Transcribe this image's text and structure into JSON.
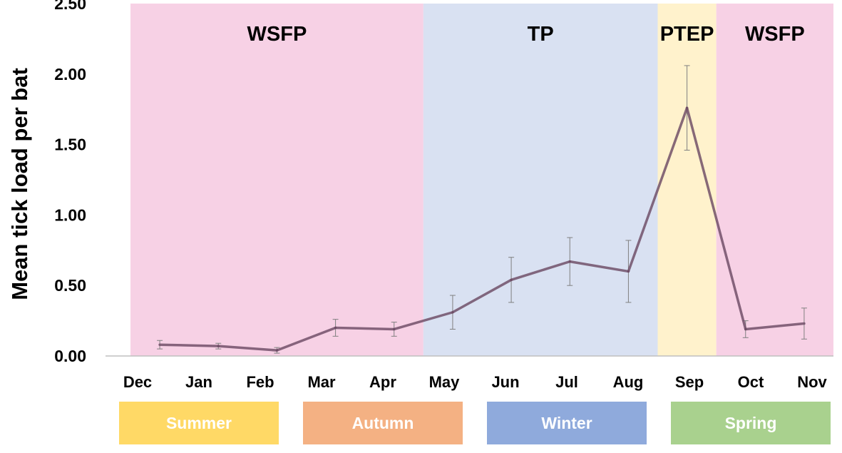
{
  "chart_data": {
    "type": "line",
    "ylabel": "Mean tick load per bat",
    "xlabel": "",
    "ylim": [
      0,
      2.5
    ],
    "yticks": [
      "0.00",
      "0.50",
      "1.00",
      "1.50",
      "2.00",
      "2.50"
    ],
    "categories": [
      "Dec",
      "Jan",
      "Feb",
      "Mar",
      "Apr",
      "May",
      "Jun",
      "Jul",
      "Aug",
      "Sep",
      "Oct",
      "Nov"
    ],
    "series": [
      {
        "values": [
          0.08,
          0.07,
          0.04,
          0.2,
          0.19,
          0.31,
          0.54,
          0.67,
          0.6,
          1.76,
          0.19,
          0.23
        ],
        "error": [
          0.03,
          0.02,
          0.02,
          0.06,
          0.05,
          0.12,
          0.16,
          0.17,
          0.22,
          0.3,
          0.06,
          0.11
        ]
      }
    ],
    "periods": [
      {
        "label": "WSFP",
        "from": "Dec",
        "to": "Apr",
        "color": "#f7d1e5"
      },
      {
        "label": "TP",
        "from": "May",
        "to": "Aug",
        "color": "#d9e1f2"
      },
      {
        "label": "PTEP",
        "from": "Sep",
        "to": "Sep",
        "color": "#fff2cc"
      },
      {
        "label": "WSFP",
        "from": "Oct",
        "to": "Nov",
        "color": "#f7d1e5"
      }
    ],
    "seasons": [
      {
        "label": "Summer",
        "from": "Dec",
        "to": "Feb",
        "color": "#ffd966"
      },
      {
        "label": "Autumn",
        "from": "Mar",
        "to": "May",
        "color": "#f4b183"
      },
      {
        "label": "Winter",
        "from": "Jun",
        "to": "Aug",
        "color": "#8faadc"
      },
      {
        "label": "Spring",
        "from": "Sep",
        "to": "Nov",
        "color": "#a9d18e"
      }
    ],
    "line_color": "#6d4a64",
    "grid": false
  }
}
